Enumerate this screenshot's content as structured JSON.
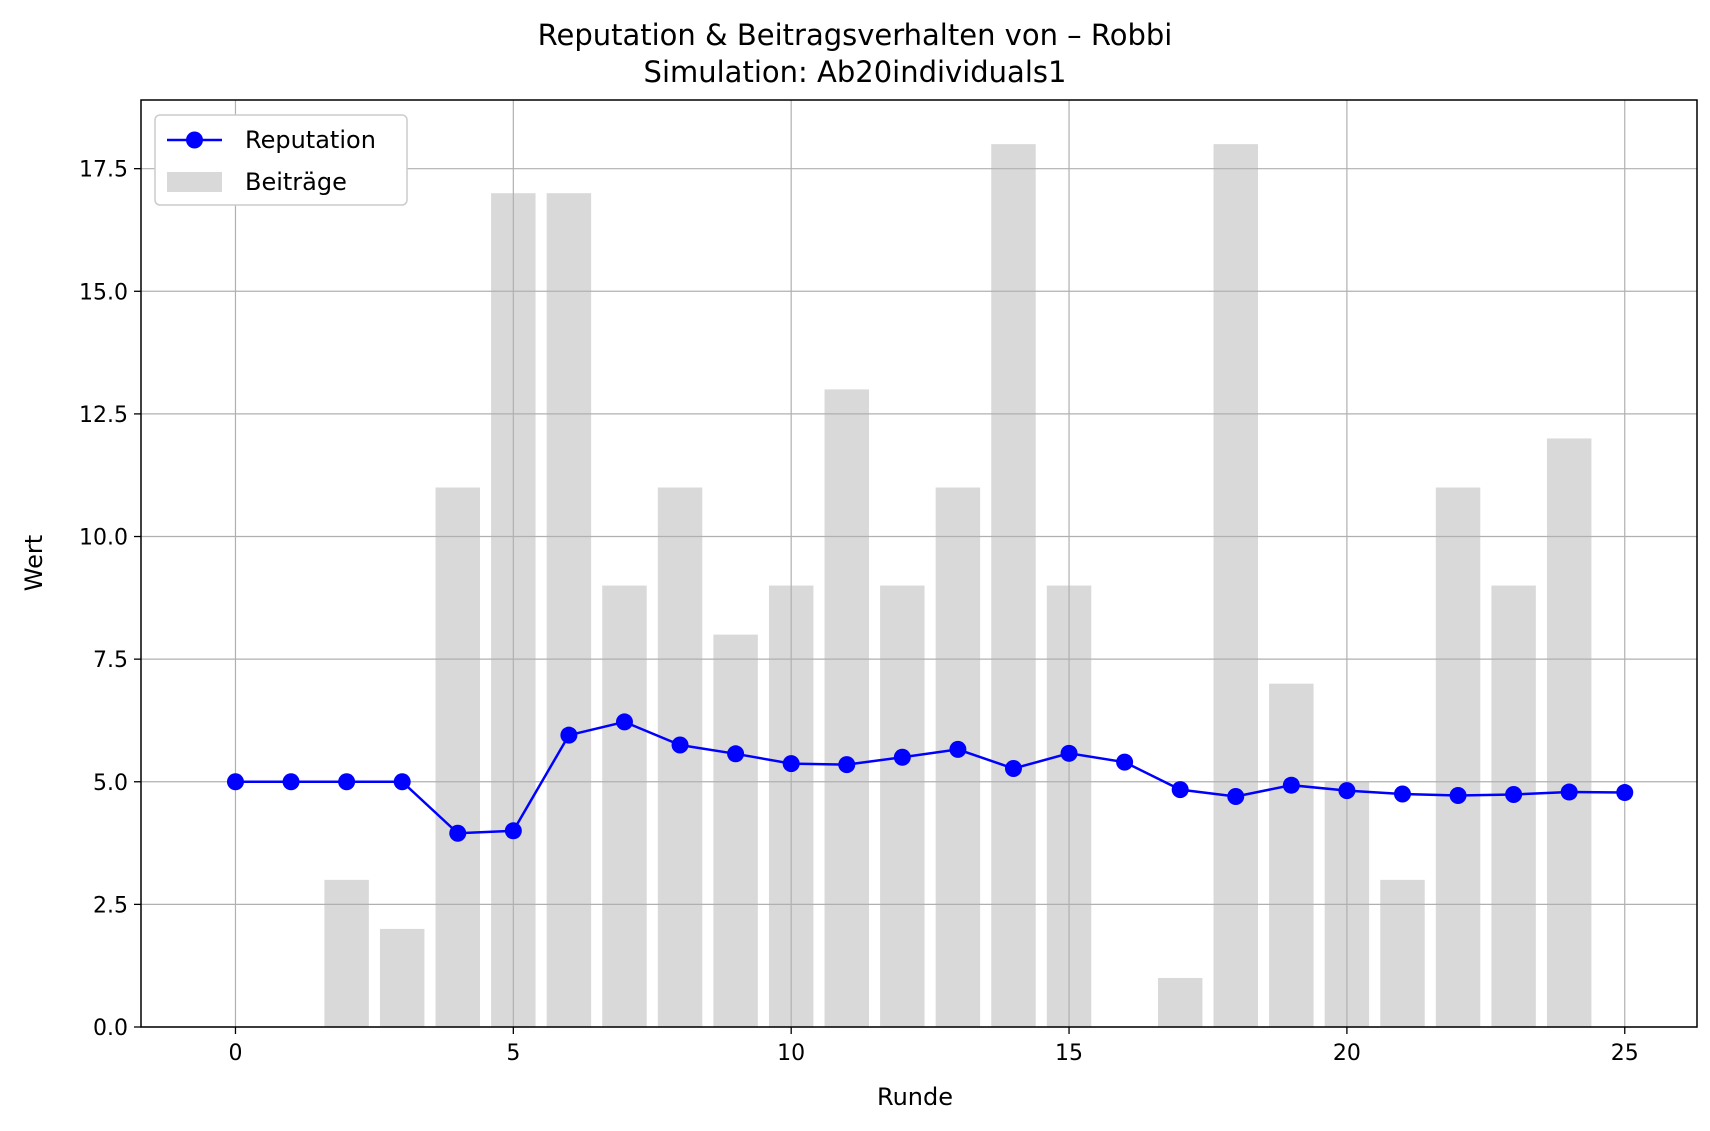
{
  "chart_data": {
    "type": "bar",
    "title": "Reputation & Beitragsverhalten von – Robbi",
    "subtitle": "Simulation: Ab20individuals1",
    "xlabel": "Runde",
    "ylabel": "Wert",
    "xlim": [
      -1.7,
      26.3
    ],
    "ylim": [
      0,
      18.9
    ],
    "xticks": [
      0,
      5,
      10,
      15,
      20,
      25
    ],
    "xtick_labels": [
      "0",
      "5",
      "10",
      "15",
      "20",
      "25"
    ],
    "yticks": [
      0,
      2.5,
      5,
      7.5,
      10,
      12.5,
      15,
      17.5
    ],
    "ytick_labels": [
      "0.0",
      "2.5",
      "5.0",
      "7.5",
      "10.0",
      "12.5",
      "15.0",
      "17.5"
    ],
    "grid": true,
    "legend_position": "top-left",
    "x": [
      0,
      1,
      2,
      3,
      4,
      5,
      6,
      7,
      8,
      9,
      10,
      11,
      12,
      13,
      14,
      15,
      16,
      17,
      18,
      19,
      20,
      21,
      22,
      23,
      24,
      25
    ],
    "series": [
      {
        "name": "Reputation",
        "kind": "line",
        "color": "#0000ff",
        "marker": "circle",
        "values": [
          5.0,
          5.0,
          5.0,
          5.0,
          3.95,
          4.0,
          5.95,
          6.22,
          5.75,
          5.57,
          5.37,
          5.35,
          5.5,
          5.66,
          5.27,
          5.58,
          5.4,
          4.84,
          4.7,
          4.93,
          4.82,
          4.75,
          4.72,
          4.74,
          4.79,
          4.78
        ]
      },
      {
        "name": "Beiträge",
        "kind": "bar",
        "color": "#d9d9d9",
        "values": [
          0,
          0,
          3,
          2,
          11,
          17,
          17,
          9,
          11,
          8,
          9,
          13,
          9,
          11,
          18,
          9,
          0,
          1,
          18,
          7,
          5,
          3,
          11,
          9,
          12,
          0
        ]
      }
    ]
  }
}
